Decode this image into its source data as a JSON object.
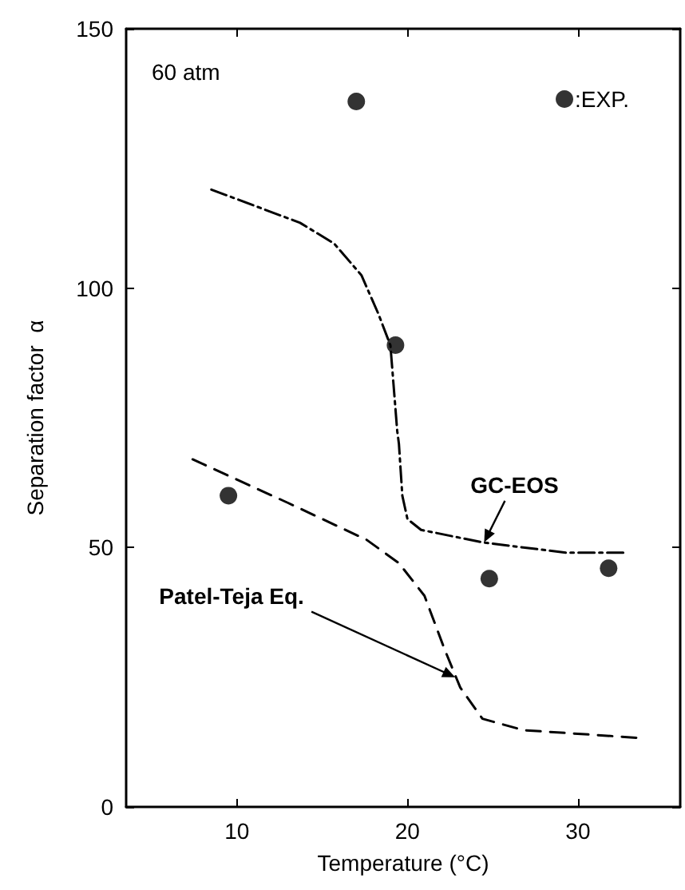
{
  "chart_data": {
    "type": "line",
    "xlabel": "Temperature (°C)",
    "ylabel": "Separation factor  α",
    "xlim": [
      3.5,
      36
    ],
    "xticks": [
      10,
      20,
      30
    ],
    "ylim": [
      0,
      150
    ],
    "yticks": [
      0,
      50,
      100,
      150
    ],
    "grid": false,
    "legend": "top right",
    "annotations": [
      "60 atm",
      {
        "text": "GC-EOS",
        "x": 24.5,
        "y": 51
      },
      {
        "text": "Patel-Teja Eq.",
        "x": 22.8,
        "y": 25
      }
    ],
    "series": [
      {
        "name": ":EXP.",
        "type": "scatter",
        "marker": "circle",
        "color": "#000000",
        "x": [
          9.5,
          17,
          19.3,
          24.8,
          31.8
        ],
        "values": [
          60,
          136,
          89,
          44,
          46
        ]
      },
      {
        "line_style": "dashdot",
        "color": "#000000",
        "x": [
          8.5,
          13.7,
          15.7,
          17.3,
          18.3,
          19,
          19.4,
          19.5,
          19.7,
          20,
          20.8,
          24.4,
          29.3,
          32.8
        ],
        "values": [
          119,
          112.6,
          108.6,
          102.5,
          95,
          89,
          72.5,
          70,
          60,
          55.5,
          53.4,
          51,
          49,
          49
        ]
      },
      {
        "line_style": "dashed",
        "color": "#000000",
        "x": [
          7.4,
          13,
          17.6,
          19.5,
          21,
          22.2,
          23.1,
          24.4,
          26.8,
          33.6
        ],
        "values": [
          67,
          58.6,
          51.5,
          47,
          40.7,
          30.2,
          23,
          17,
          14.8,
          13.3
        ]
      }
    ]
  }
}
